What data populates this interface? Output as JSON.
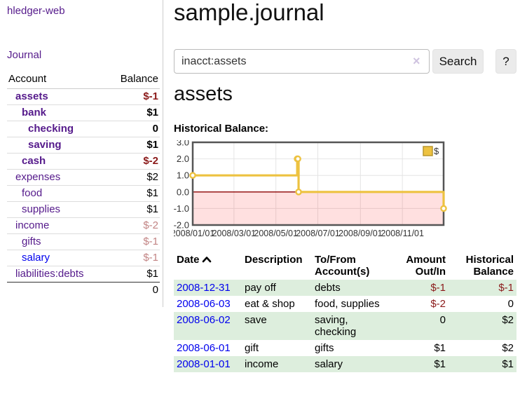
{
  "sidebar": {
    "brand": "hledger-web",
    "nav": {
      "journal": "Journal"
    },
    "accounts": {
      "header_account": "Account",
      "header_balance": "Balance",
      "rows": [
        {
          "name": "assets",
          "balance": "$-1",
          "depth": 1,
          "emph": true,
          "negative": true,
          "muted": false
        },
        {
          "name": "bank",
          "balance": "$1",
          "depth": 2,
          "emph": true,
          "negative": false,
          "muted": false
        },
        {
          "name": "checking",
          "balance": "0",
          "depth": 3,
          "emph": true,
          "negative": false,
          "muted": false
        },
        {
          "name": "saving",
          "balance": "$1",
          "depth": 3,
          "emph": true,
          "negative": false,
          "muted": false
        },
        {
          "name": "cash",
          "balance": "$-2",
          "depth": 2,
          "emph": true,
          "negative": true,
          "muted": false
        },
        {
          "name": "expenses",
          "balance": "$2",
          "depth": 1,
          "emph": false,
          "negative": false,
          "muted": false
        },
        {
          "name": "food",
          "balance": "$1",
          "depth": 2,
          "emph": false,
          "negative": false,
          "muted": false
        },
        {
          "name": "supplies",
          "balance": "$1",
          "depth": 2,
          "emph": false,
          "negative": false,
          "muted": false
        },
        {
          "name": "income",
          "balance": "$-2",
          "depth": 1,
          "emph": false,
          "negative": true,
          "muted": true
        },
        {
          "name": "gifts",
          "balance": "$-1",
          "depth": 2,
          "emph": false,
          "negative": true,
          "muted": true
        },
        {
          "name": "salary",
          "balance": "$-1",
          "depth": 2,
          "emph": false,
          "negative": true,
          "muted": true,
          "link_blue": true
        },
        {
          "name": "liabilities:debts",
          "balance": "$1",
          "depth": 1,
          "emph": false,
          "negative": false,
          "muted": false
        }
      ],
      "total": "0"
    }
  },
  "main": {
    "title": "sample.journal",
    "search": {
      "value": "inacct:assets",
      "clear_icon": "×",
      "button_label": "Search",
      "help_label": "?"
    },
    "account_heading": "assets",
    "chart_title": "Historical Balance:"
  },
  "chart_data": {
    "type": "line",
    "step": true,
    "title": "Historical Balance:",
    "x_range": [
      "2008-01-01",
      "2008-12-31"
    ],
    "ylim": [
      -2.0,
      3.0
    ],
    "yticks": [
      "3.0",
      "2.0",
      "1.0",
      "0.0",
      "-1.0",
      "-2.0"
    ],
    "xticks": [
      {
        "date": "2008-01-01",
        "label": "2008/01/01"
      },
      {
        "date": "2008-03-01",
        "label": "2008/03/01"
      },
      {
        "date": "2008-05-01",
        "label": "2008/05/01"
      },
      {
        "date": "2008-07-01",
        "label": "2008/07/01"
      },
      {
        "date": "2008-09-01",
        "label": "2008/09/01"
      },
      {
        "date": "2008-11-01",
        "label": "2008/11/01"
      }
    ],
    "series": [
      {
        "name": "$",
        "color": "#edc240",
        "points": [
          {
            "date": "2008-01-01",
            "value": 1
          },
          {
            "date": "2008-06-01",
            "value": 2
          },
          {
            "date": "2008-06-02",
            "value": 2
          },
          {
            "date": "2008-06-03",
            "value": 0
          },
          {
            "date": "2008-12-31",
            "value": -1
          }
        ]
      }
    ],
    "legend": {
      "label": "$",
      "position": "top-right"
    },
    "grid": true,
    "colors": {
      "negative_region": "rgba(255,0,0,0.12)",
      "zero_line": "#8b0000",
      "gridline": "#e4e4e4",
      "border": "#555555",
      "tick_text": "#333333"
    }
  },
  "register": {
    "headers": {
      "date": "Date",
      "sort_indicator": "ascending",
      "description": "Description",
      "accounts": "To/From Account(s)",
      "amount": "Amount Out/In",
      "balance": "Historical Balance"
    },
    "rows": [
      {
        "date": "2008-12-31",
        "description": "pay off",
        "accounts": "debts",
        "amount": "$-1",
        "balance": "$-1",
        "amount_negative": true,
        "balance_negative": true
      },
      {
        "date": "2008-06-03",
        "description": "eat & shop",
        "accounts": "food, supplies",
        "amount": "$-2",
        "balance": "0",
        "amount_negative": true,
        "balance_negative": false
      },
      {
        "date": "2008-06-02",
        "description": "save",
        "accounts": "saving, checking",
        "amount": "0",
        "balance": "$2",
        "amount_negative": false,
        "balance_negative": false
      },
      {
        "date": "2008-06-01",
        "description": "gift",
        "accounts": "gifts",
        "amount": "$1",
        "balance": "$2",
        "amount_negative": false,
        "balance_negative": false
      },
      {
        "date": "2008-01-01",
        "description": "income",
        "accounts": "salary",
        "amount": "$1",
        "balance": "$1",
        "amount_negative": false,
        "balance_negative": false
      }
    ]
  },
  "colors": {
    "link_purple": "#551a8b",
    "link_blue": "#0000ee",
    "negative_strong": "#8b1a1a",
    "negative_muted": "#c28484",
    "row_stripe_green": "#ddeedd",
    "chart_line_gold": "#edc240"
  }
}
